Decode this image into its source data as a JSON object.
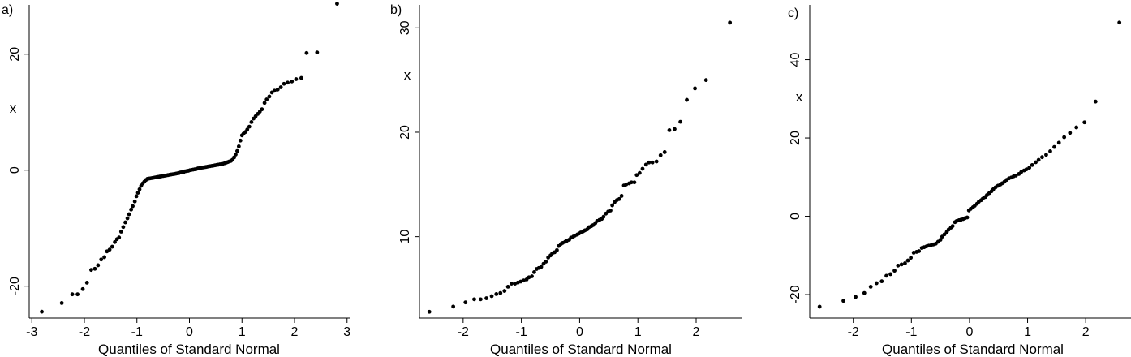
{
  "chart_data": [
    {
      "type": "scatter",
      "panel_label": "a)",
      "xlabel": "Quantiles of Standard Normal",
      "ylabel": "x",
      "xlim": [
        -3.05,
        3.05
      ],
      "ylim": [
        -25.5,
        28.5
      ],
      "xticks": [
        -3,
        -2,
        -1,
        0,
        1,
        2,
        3
      ],
      "xtick_labels": [
        "-3",
        "-2",
        "-1",
        "0",
        "1",
        "2",
        "3"
      ],
      "yticks": [
        -20,
        0,
        20
      ],
      "ytick_labels": [
        "-20",
        "0",
        "20"
      ],
      "grid": false,
      "points": [
        [
          -2.81,
          -24.4
        ],
        [
          -2.43,
          -22.9
        ],
        [
          -2.23,
          -21.4
        ],
        [
          -2.13,
          -21.4
        ],
        [
          -2.03,
          -20.5
        ],
        [
          -1.95,
          -19.4
        ],
        [
          -1.87,
          -17.2
        ],
        [
          -1.8,
          -17.0
        ],
        [
          -1.74,
          -16.4
        ],
        [
          -1.68,
          -15.4
        ],
        [
          -1.62,
          -15.0
        ],
        [
          -1.57,
          -14.0
        ],
        [
          -1.52,
          -13.7
        ],
        [
          -1.47,
          -13.2
        ],
        [
          -1.42,
          -12.4
        ],
        [
          -1.38,
          -11.9
        ],
        [
          -1.34,
          -11.6
        ],
        [
          -1.3,
          -10.6
        ],
        [
          -1.26,
          -9.8
        ],
        [
          -1.22,
          -9.0
        ],
        [
          -1.18,
          -8.3
        ],
        [
          -1.15,
          -7.6
        ],
        [
          -1.11,
          -6.8
        ],
        [
          -1.08,
          -6.2
        ],
        [
          -1.04,
          -5.4
        ],
        [
          -1.01,
          -4.5
        ],
        [
          -0.98,
          -3.9
        ],
        [
          -0.95,
          -3.3
        ],
        [
          -0.92,
          -2.7
        ],
        [
          -0.89,
          -2.3
        ],
        [
          -0.86,
          -2.0
        ],
        [
          -0.83,
          -1.7
        ],
        [
          -0.8,
          -1.5
        ],
        [
          -0.77,
          -1.45
        ],
        [
          -0.74,
          -1.4
        ],
        [
          -0.71,
          -1.35
        ],
        [
          -0.68,
          -1.3
        ],
        [
          -0.65,
          -1.25
        ],
        [
          -0.62,
          -1.2
        ],
        [
          -0.59,
          -1.15
        ],
        [
          -0.56,
          -1.1
        ],
        [
          -0.53,
          -1.05
        ],
        [
          -0.5,
          -1.0
        ],
        [
          -0.47,
          -0.95
        ],
        [
          -0.44,
          -0.9
        ],
        [
          -0.41,
          -0.85
        ],
        [
          -0.38,
          -0.8
        ],
        [
          -0.35,
          -0.75
        ],
        [
          -0.32,
          -0.7
        ],
        [
          -0.29,
          -0.65
        ],
        [
          -0.26,
          -0.6
        ],
        [
          -0.23,
          -0.55
        ],
        [
          -0.2,
          -0.5
        ],
        [
          -0.17,
          -0.4
        ],
        [
          -0.14,
          -0.35
        ],
        [
          -0.11,
          -0.3
        ],
        [
          -0.08,
          -0.2
        ],
        [
          -0.05,
          -0.15
        ],
        [
          -0.02,
          -0.1
        ],
        [
          0.01,
          0.0
        ],
        [
          0.04,
          0.05
        ],
        [
          0.07,
          0.1
        ],
        [
          0.1,
          0.15
        ],
        [
          0.13,
          0.2
        ],
        [
          0.16,
          0.3
        ],
        [
          0.19,
          0.35
        ],
        [
          0.22,
          0.4
        ],
        [
          0.25,
          0.45
        ],
        [
          0.28,
          0.5
        ],
        [
          0.31,
          0.55
        ],
        [
          0.34,
          0.6
        ],
        [
          0.37,
          0.65
        ],
        [
          0.4,
          0.7
        ],
        [
          0.43,
          0.75
        ],
        [
          0.46,
          0.8
        ],
        [
          0.49,
          0.85
        ],
        [
          0.52,
          0.9
        ],
        [
          0.55,
          0.95
        ],
        [
          0.58,
          1.0
        ],
        [
          0.61,
          1.05
        ],
        [
          0.64,
          1.1
        ],
        [
          0.67,
          1.2
        ],
        [
          0.7,
          1.3
        ],
        [
          0.73,
          1.4
        ],
        [
          0.76,
          1.5
        ],
        [
          0.79,
          1.6
        ],
        [
          0.82,
          1.8
        ],
        [
          0.85,
          2.2
        ],
        [
          0.88,
          2.7
        ],
        [
          0.91,
          3.3
        ],
        [
          0.94,
          4.1
        ],
        [
          0.97,
          5.1
        ],
        [
          1.0,
          6.0
        ],
        [
          1.03,
          6.3
        ],
        [
          1.07,
          6.6
        ],
        [
          1.1,
          7.0
        ],
        [
          1.14,
          7.5
        ],
        [
          1.18,
          8.3
        ],
        [
          1.22,
          8.9
        ],
        [
          1.26,
          9.3
        ],
        [
          1.3,
          9.7
        ],
        [
          1.34,
          10.1
        ],
        [
          1.38,
          10.5
        ],
        [
          1.43,
          11.6
        ],
        [
          1.47,
          12.2
        ],
        [
          1.52,
          12.7
        ],
        [
          1.57,
          13.4
        ],
        [
          1.62,
          13.7
        ],
        [
          1.68,
          13.9
        ],
        [
          1.74,
          14.3
        ],
        [
          1.8,
          14.9
        ],
        [
          1.87,
          15.1
        ],
        [
          1.95,
          15.3
        ],
        [
          2.03,
          15.7
        ],
        [
          2.13,
          15.9
        ],
        [
          2.23,
          20.2
        ],
        [
          2.43,
          20.3
        ],
        [
          2.81,
          28.7
        ]
      ]
    },
    {
      "type": "scatter",
      "panel_label": "b)",
      "xlabel": "Quantiles of Standard Normal",
      "ylabel": "x",
      "xlim": [
        -2.75,
        2.78
      ],
      "ylim": [
        2.2,
        32.2
      ],
      "xticks": [
        -2,
        -1,
        0,
        1,
        2
      ],
      "xtick_labels": [
        "-2",
        "-1",
        "0",
        "1",
        "2"
      ],
      "yticks": [
        10,
        20,
        30
      ],
      "ytick_labels": [
        "10",
        "20",
        "30"
      ],
      "grid": false,
      "points": [
        [
          -2.58,
          2.8
        ],
        [
          -2.17,
          3.3
        ],
        [
          -1.96,
          3.7
        ],
        [
          -1.81,
          4.0
        ],
        [
          -1.7,
          4.0
        ],
        [
          -1.6,
          4.1
        ],
        [
          -1.51,
          4.3
        ],
        [
          -1.43,
          4.5
        ],
        [
          -1.36,
          4.6
        ],
        [
          -1.29,
          4.8
        ],
        [
          -1.23,
          5.2
        ],
        [
          -1.17,
          5.5
        ],
        [
          -1.11,
          5.5
        ],
        [
          -1.06,
          5.6
        ],
        [
          -1.01,
          5.7
        ],
        [
          -0.96,
          5.8
        ],
        [
          -0.91,
          5.9
        ],
        [
          -0.87,
          6.1
        ],
        [
          -0.82,
          6.2
        ],
        [
          -0.78,
          6.6
        ],
        [
          -0.74,
          6.9
        ],
        [
          -0.7,
          7.0
        ],
        [
          -0.66,
          7.1
        ],
        [
          -0.62,
          7.4
        ],
        [
          -0.58,
          7.6
        ],
        [
          -0.54,
          8.0
        ],
        [
          -0.5,
          8.2
        ],
        [
          -0.47,
          8.4
        ],
        [
          -0.43,
          8.5
        ],
        [
          -0.39,
          8.7
        ],
        [
          -0.36,
          9.1
        ],
        [
          -0.32,
          9.3
        ],
        [
          -0.29,
          9.4
        ],
        [
          -0.25,
          9.5
        ],
        [
          -0.22,
          9.6
        ],
        [
          -0.18,
          9.7
        ],
        [
          -0.15,
          9.9
        ],
        [
          -0.11,
          10.0
        ],
        [
          -0.08,
          10.1
        ],
        [
          -0.04,
          10.2
        ],
        [
          -0.01,
          10.3
        ],
        [
          0.02,
          10.4
        ],
        [
          0.06,
          10.5
        ],
        [
          0.09,
          10.6
        ],
        [
          0.13,
          10.7
        ],
        [
          0.16,
          10.9
        ],
        [
          0.2,
          11.0
        ],
        [
          0.23,
          11.1
        ],
        [
          0.27,
          11.3
        ],
        [
          0.3,
          11.5
        ],
        [
          0.34,
          11.6
        ],
        [
          0.38,
          11.7
        ],
        [
          0.41,
          11.9
        ],
        [
          0.45,
          12.2
        ],
        [
          0.49,
          12.4
        ],
        [
          0.53,
          12.5
        ],
        [
          0.56,
          13.0
        ],
        [
          0.6,
          13.3
        ],
        [
          0.64,
          13.5
        ],
        [
          0.68,
          13.6
        ],
        [
          0.72,
          13.9
        ],
        [
          0.76,
          14.9
        ],
        [
          0.8,
          15.0
        ],
        [
          0.85,
          15.1
        ],
        [
          0.89,
          15.2
        ],
        [
          0.94,
          15.2
        ],
        [
          0.98,
          15.9
        ],
        [
          1.03,
          16.1
        ],
        [
          1.08,
          16.5
        ],
        [
          1.14,
          16.9
        ],
        [
          1.19,
          17.1
        ],
        [
          1.25,
          17.1
        ],
        [
          1.32,
          17.2
        ],
        [
          1.39,
          17.8
        ],
        [
          1.46,
          18.1
        ],
        [
          1.54,
          20.2
        ],
        [
          1.63,
          20.3
        ],
        [
          1.73,
          21.0
        ],
        [
          1.84,
          23.1
        ],
        [
          1.98,
          24.2
        ],
        [
          2.17,
          25.0
        ],
        [
          2.58,
          30.5
        ]
      ]
    },
    {
      "type": "scatter",
      "panel_label": "c)",
      "xlabel": "Quantiles of Standard Normal",
      "ylabel": "x",
      "xlim": [
        -2.75,
        2.78
      ],
      "ylim": [
        -26,
        54
      ],
      "xticks": [
        -2,
        -1,
        0,
        1,
        2
      ],
      "xtick_labels": [
        "-2",
        "-1",
        "0",
        "1",
        "2"
      ],
      "yticks": [
        -20,
        0,
        20,
        40
      ],
      "ytick_labels": [
        "-20",
        "0",
        "20",
        "40"
      ],
      "grid": false,
      "points": [
        [
          -2.58,
          -23.1
        ],
        [
          -2.17,
          -21.6
        ],
        [
          -1.96,
          -20.6
        ],
        [
          -1.81,
          -19.6
        ],
        [
          -1.7,
          -18.0
        ],
        [
          -1.6,
          -17.1
        ],
        [
          -1.51,
          -16.6
        ],
        [
          -1.43,
          -15.2
        ],
        [
          -1.36,
          -14.8
        ],
        [
          -1.29,
          -13.9
        ],
        [
          -1.23,
          -12.6
        ],
        [
          -1.17,
          -12.3
        ],
        [
          -1.11,
          -12.0
        ],
        [
          -1.06,
          -11.3
        ],
        [
          -1.01,
          -10.6
        ],
        [
          -0.96,
          -9.3
        ],
        [
          -0.91,
          -9.1
        ],
        [
          -0.87,
          -8.9
        ],
        [
          -0.82,
          -8.1
        ],
        [
          -0.78,
          -7.9
        ],
        [
          -0.74,
          -7.7
        ],
        [
          -0.7,
          -7.5
        ],
        [
          -0.66,
          -7.4
        ],
        [
          -0.62,
          -7.2
        ],
        [
          -0.58,
          -7.0
        ],
        [
          -0.54,
          -6.5
        ],
        [
          -0.5,
          -6.0
        ],
        [
          -0.47,
          -5.2
        ],
        [
          -0.43,
          -4.6
        ],
        [
          -0.39,
          -4.0
        ],
        [
          -0.36,
          -3.4
        ],
        [
          -0.32,
          -2.9
        ],
        [
          -0.29,
          -2.5
        ],
        [
          -0.25,
          -1.5
        ],
        [
          -0.22,
          -1.2
        ],
        [
          -0.18,
          -1.0
        ],
        [
          -0.15,
          -0.9
        ],
        [
          -0.11,
          -0.7
        ],
        [
          -0.08,
          -0.5
        ],
        [
          -0.04,
          -0.3
        ],
        [
          -0.01,
          1.5
        ],
        [
          0.02,
          1.9
        ],
        [
          0.06,
          2.3
        ],
        [
          0.09,
          2.7
        ],
        [
          0.13,
          3.2
        ],
        [
          0.16,
          3.7
        ],
        [
          0.2,
          4.1
        ],
        [
          0.23,
          4.5
        ],
        [
          0.27,
          4.9
        ],
        [
          0.3,
          5.4
        ],
        [
          0.34,
          5.9
        ],
        [
          0.38,
          6.4
        ],
        [
          0.41,
          6.9
        ],
        [
          0.45,
          7.4
        ],
        [
          0.49,
          7.8
        ],
        [
          0.53,
          8.1
        ],
        [
          0.56,
          8.4
        ],
        [
          0.6,
          8.8
        ],
        [
          0.64,
          9.3
        ],
        [
          0.68,
          9.7
        ],
        [
          0.72,
          9.9
        ],
        [
          0.76,
          10.2
        ],
        [
          0.8,
          10.4
        ],
        [
          0.85,
          10.8
        ],
        [
          0.89,
          11.3
        ],
        [
          0.94,
          11.7
        ],
        [
          0.98,
          12.0
        ],
        [
          1.03,
          12.4
        ],
        [
          1.08,
          13.1
        ],
        [
          1.14,
          13.8
        ],
        [
          1.19,
          14.4
        ],
        [
          1.25,
          15.1
        ],
        [
          1.32,
          15.7
        ],
        [
          1.39,
          16.6
        ],
        [
          1.46,
          17.7
        ],
        [
          1.54,
          18.8
        ],
        [
          1.63,
          20.2
        ],
        [
          1.73,
          21.3
        ],
        [
          1.84,
          22.7
        ],
        [
          1.98,
          24.0
        ],
        [
          2.17,
          29.3
        ],
        [
          2.58,
          49.5
        ]
      ]
    }
  ]
}
